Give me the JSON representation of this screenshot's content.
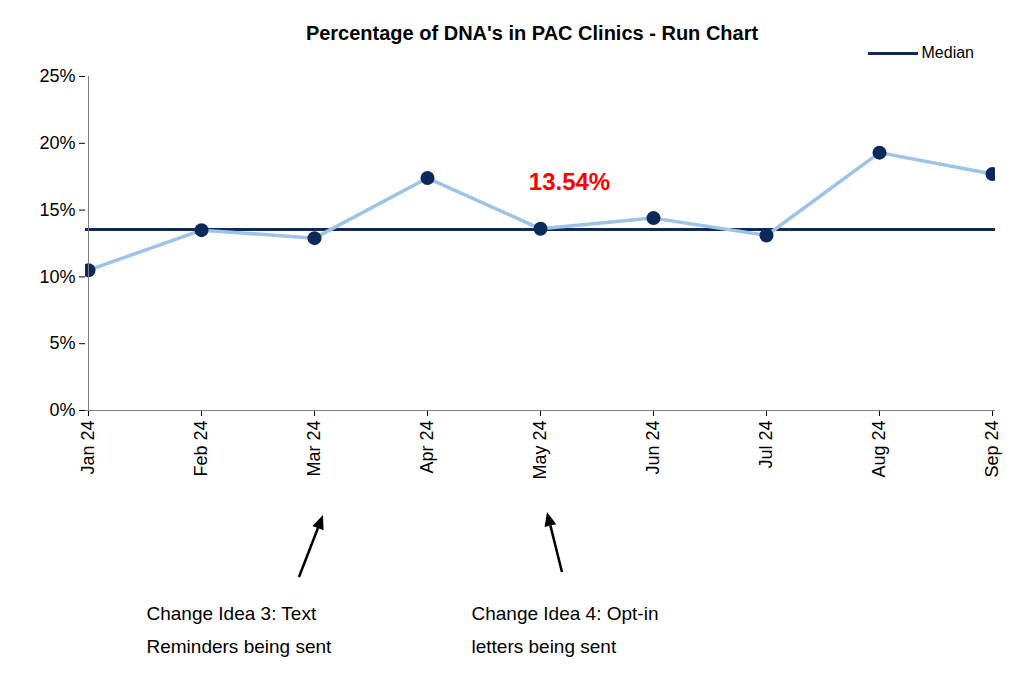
{
  "chart_data": {
    "type": "line",
    "title": "Percentage of DNA's in PAC Clinics - Run Chart",
    "categories": [
      "Jan 24",
      "Feb 24",
      "Mar 24",
      "Apr 24",
      "May 24",
      "Jun 24",
      "Jul 24",
      "Aug 24",
      "Sep 24"
    ],
    "values": [
      10.5,
      13.5,
      12.9,
      17.4,
      13.6,
      14.4,
      13.1,
      19.3,
      17.7
    ],
    "color": "#9dc3e6",
    "marker": "circle",
    "median": {
      "name": "Median",
      "value": 13.54,
      "label": "13.54%",
      "color": "#0e2a5c"
    },
    "ylim": [
      0,
      25
    ],
    "yticks": [
      {
        "value": 0,
        "label": "0%"
      },
      {
        "value": 5,
        "label": "5%"
      },
      {
        "value": 10,
        "label": "10%"
      },
      {
        "value": 15,
        "label": "15%"
      },
      {
        "value": 20,
        "label": "20%"
      },
      {
        "value": 25,
        "label": "25%"
      }
    ],
    "grid": false,
    "legend": "top-right",
    "annotations": [
      {
        "text": "Change Idea 3: Text\nReminders being sent",
        "x": "Mar 24"
      },
      {
        "text": "Change Idea 4: Opt-in\nletters being sent",
        "x": "May 24"
      }
    ]
  }
}
